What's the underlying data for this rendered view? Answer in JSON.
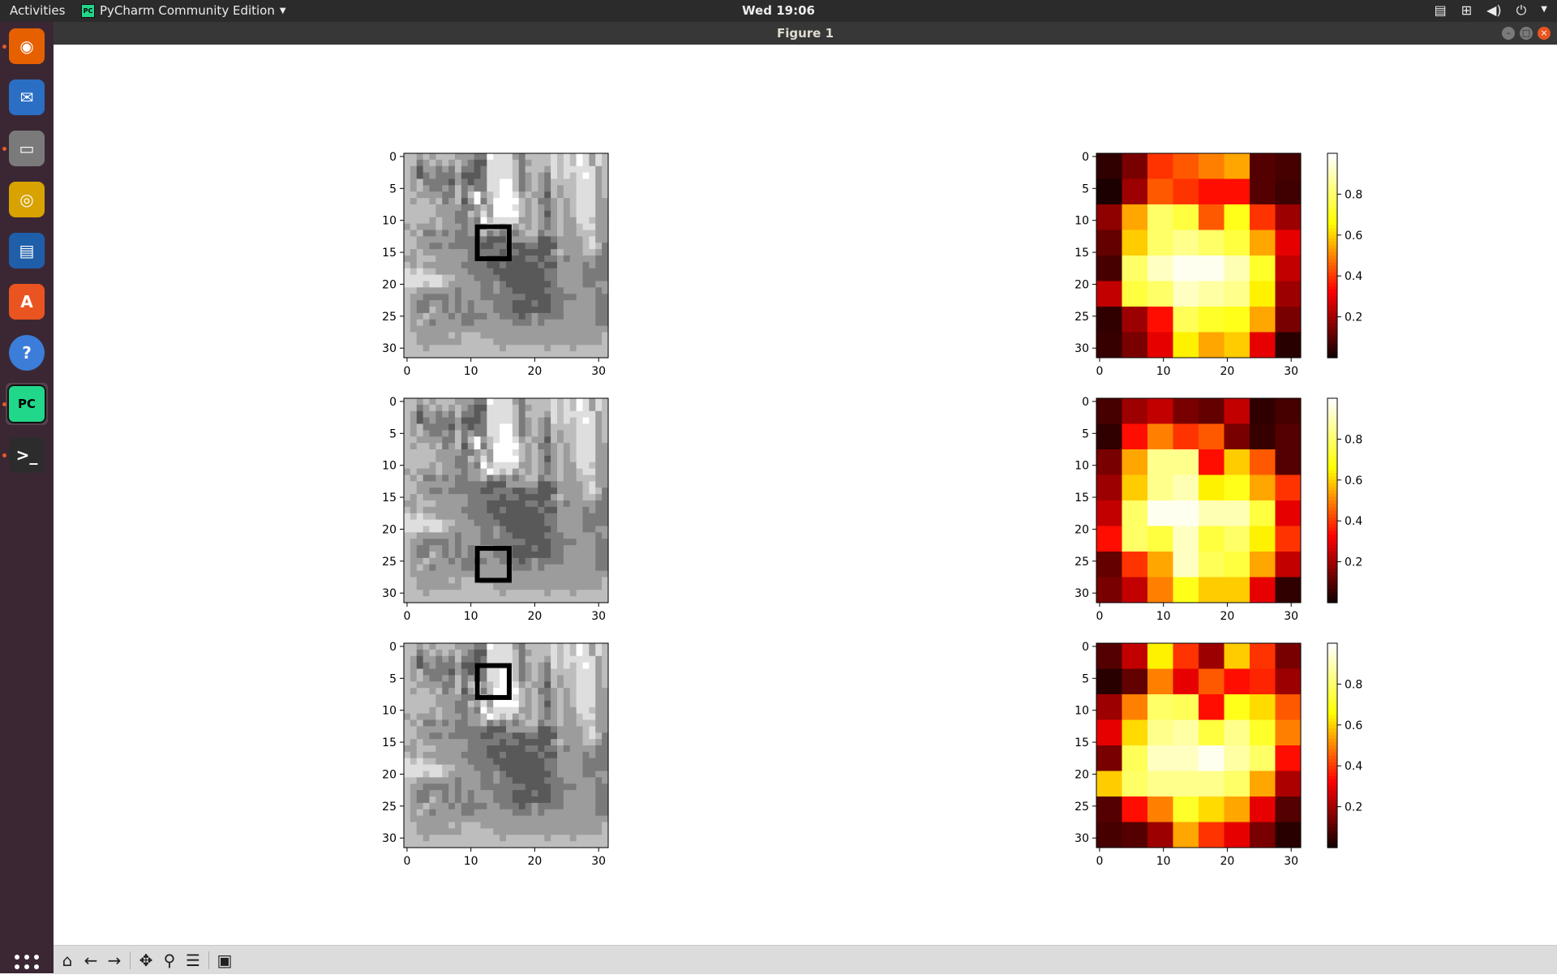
{
  "topbar": {
    "activities": "Activities",
    "app_name": "PyCharm Community Edition",
    "clock": "Wed 19:06"
  },
  "window": {
    "title": "Figure 1"
  },
  "dock": {
    "items": [
      {
        "name": "firefox",
        "color": "#e66000",
        "running": true
      },
      {
        "name": "thunderbird",
        "color": "#2a6fc4",
        "running": false
      },
      {
        "name": "files",
        "color": "#7a7a7a",
        "running": true
      },
      {
        "name": "rhythmbox",
        "color": "#d8a200",
        "running": false
      },
      {
        "name": "libreoffice-writer",
        "color": "#1f5faa",
        "running": false
      },
      {
        "name": "ubuntu-software",
        "color": "#e95420",
        "running": false
      },
      {
        "name": "help",
        "color": "#3b7dd8",
        "running": false
      },
      {
        "name": "pycharm",
        "color": "#21d789",
        "running": true
      },
      {
        "name": "terminal",
        "color": "#2c2c2c",
        "running": true
      }
    ]
  },
  "figure": {
    "tick_labels": [
      "0",
      "5",
      "10",
      "15",
      "20",
      "25",
      "30"
    ],
    "x_tick_labels": [
      "0",
      "10",
      "20",
      "30"
    ],
    "colorbar_ticks": [
      "0.2",
      "0.4",
      "0.6",
      "0.8"
    ],
    "cmap_gray": [
      "#000000",
      "#ffffff"
    ],
    "cmap_hot": [
      "#0b0000",
      "#ff0000",
      "#ffff00",
      "#ffffff"
    ],
    "image": {
      "rows": [
        "ddcdcdddcccbbfeeecbddddededfeced",
        "ddbcdcdcdcbaaeeeedbcdddededfeced",
        "dcaccbcbdbbabeeeedbdddcedeeeeecd",
        "dcabcbbbcaaabeeeedbcdcbededefecd",
        "dcdbbbbacbabbeeffdbcdcbddddeeecd",
        "dcdcbbcbdbcbbeeffdbcdcbdcddeeecd",
        "ddccccbbdbdfcdeffecdccadcddeeecd",
        "dcddcdbcdacfbdffffdcdbbcdcdeeecc",
        "dddddccccbbcdcfffedcdcbcdcdeeecc",
        "dddddcccbbdcecffffdcdcacdcdeeecc",
        "ddddcdccbbcbfdeeeeccdcbcdcceedcc",
        "cdcccdcccbccdfedecdcdcbcdccdeecc",
        "dcdbbcbcbbccdbcbcbcddbccdccdddcc",
        "ddccccccbbbbbaaacccccaabccccdecc",
        "ddccbbcbbbbbaabbbaabbaaaccccdedb",
        "dcdcccccccbbbbbabbaaaaacdcccddcb",
        "ccdddcccccbbbaaaaaabbabbcbccccbb",
        "dcdccccccbbbbaabaaaaabaaccccbcbb",
        "ededdcccccbbbbaaaaaaaabbccccbbbb",
        "eeeeeeddcccbbbbaaaaaaabbccccbbbb",
        "eeedeedcccccbbcbaaaaaaabccccbbcc",
        "ddccccccbcccbbcbbaaaaabbbcccccbc",
        "dccbbbbcbcccbbbbbbbaaaabbbbcccbb",
        "dcbbccbcbcbcccbbbaaabaabbcccccbb",
        "dcbbdcbcbcbcccbbbaaaaaabbcccccbb",
        "dccdcccbcbbbbccbbbabcbbbbcccccbb",
        "dcdcbccccbbccccccbbbcbccccccccbb",
        "dccccccccccccccccccccccccccccccc",
        "ddcccccdcdddcccccccccccccccccccd",
        "ddcccccccdddddcccccccccccccccccd",
        "dddcdddddddddddcddddddcdddcddddd",
        "dddddddddddddddddddddddddddddddd"
      ]
    },
    "panels": [
      {
        "box": {
          "row": 11,
          "col": 11,
          "size": 5
        },
        "heatmap": [
          [
            0.05,
            0.15,
            0.4,
            0.45,
            0.5,
            0.55,
            0.1,
            0.08
          ],
          [
            0.02,
            0.2,
            0.45,
            0.4,
            0.35,
            0.35,
            0.1,
            0.07
          ],
          [
            0.18,
            0.55,
            0.8,
            0.75,
            0.45,
            0.7,
            0.4,
            0.2
          ],
          [
            0.12,
            0.6,
            0.8,
            0.85,
            0.8,
            0.75,
            0.55,
            0.3
          ],
          [
            0.08,
            0.8,
            0.92,
            0.98,
            0.98,
            0.9,
            0.72,
            0.25
          ],
          [
            0.25,
            0.75,
            0.8,
            0.92,
            0.88,
            0.85,
            0.65,
            0.2
          ],
          [
            0.05,
            0.2,
            0.35,
            0.78,
            0.72,
            0.7,
            0.55,
            0.15
          ],
          [
            0.06,
            0.15,
            0.3,
            0.65,
            0.55,
            0.6,
            0.3,
            0.04
          ]
        ]
      },
      {
        "box": {
          "row": 23,
          "col": 11,
          "size": 5
        },
        "heatmap": [
          [
            0.08,
            0.2,
            0.25,
            0.15,
            0.12,
            0.25,
            0.05,
            0.08
          ],
          [
            0.05,
            0.35,
            0.5,
            0.4,
            0.45,
            0.15,
            0.06,
            0.1
          ],
          [
            0.15,
            0.55,
            0.85,
            0.85,
            0.35,
            0.6,
            0.45,
            0.1
          ],
          [
            0.2,
            0.6,
            0.85,
            0.9,
            0.65,
            0.7,
            0.55,
            0.4
          ],
          [
            0.25,
            0.8,
            0.98,
            0.98,
            0.9,
            0.9,
            0.75,
            0.3
          ],
          [
            0.35,
            0.8,
            0.75,
            0.92,
            0.75,
            0.8,
            0.65,
            0.4
          ],
          [
            0.12,
            0.4,
            0.55,
            0.92,
            0.78,
            0.75,
            0.55,
            0.25
          ],
          [
            0.15,
            0.25,
            0.5,
            0.7,
            0.6,
            0.6,
            0.3,
            0.05
          ]
        ]
      },
      {
        "box": {
          "row": 3,
          "col": 11,
          "size": 5
        },
        "heatmap": [
          [
            0.1,
            0.25,
            0.65,
            0.4,
            0.2,
            0.6,
            0.4,
            0.15
          ],
          [
            0.04,
            0.12,
            0.5,
            0.3,
            0.45,
            0.35,
            0.38,
            0.2
          ],
          [
            0.2,
            0.5,
            0.8,
            0.78,
            0.35,
            0.7,
            0.62,
            0.45
          ],
          [
            0.3,
            0.62,
            0.85,
            0.88,
            0.75,
            0.85,
            0.72,
            0.5
          ],
          [
            0.15,
            0.78,
            0.92,
            0.92,
            0.98,
            0.88,
            0.8,
            0.35
          ],
          [
            0.6,
            0.8,
            0.85,
            0.85,
            0.85,
            0.8,
            0.55,
            0.22
          ],
          [
            0.1,
            0.35,
            0.5,
            0.72,
            0.62,
            0.55,
            0.3,
            0.1
          ],
          [
            0.08,
            0.1,
            0.2,
            0.55,
            0.4,
            0.3,
            0.15,
            0.04
          ]
        ]
      }
    ]
  }
}
